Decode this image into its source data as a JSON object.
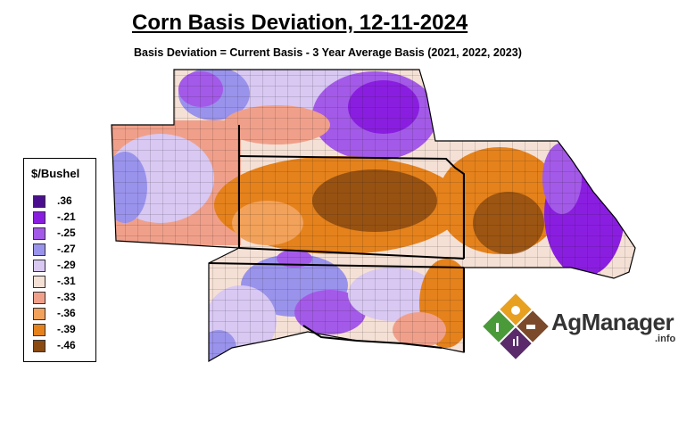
{
  "title": "Corn Basis Deviation, 12-11-2024",
  "subtitle": "Basis Deviation = Current Basis - 3 Year Average Basis (2021, 2022, 2023)",
  "legend": {
    "title": "$/Bushel",
    "items": [
      {
        "label": ".36",
        "color": "#4b0e8f"
      },
      {
        "label": "-.21",
        "color": "#8a1ee0"
      },
      {
        "label": "-.25",
        "color": "#a45ae8"
      },
      {
        "label": "-.27",
        "color": "#9a93ec"
      },
      {
        "label": "-.29",
        "color": "#d8c8f2"
      },
      {
        "label": "-.31",
        "color": "#f5e0d5"
      },
      {
        "label": "-.33",
        "color": "#f0a08a"
      },
      {
        "label": "-.36",
        "color": "#f2a25a"
      },
      {
        "label": "-.39",
        "color": "#e5821c"
      },
      {
        "label": "-.46",
        "color": "#8a4a10"
      }
    ]
  },
  "logo": {
    "name": "AgManager",
    "suffix": ".info"
  }
}
